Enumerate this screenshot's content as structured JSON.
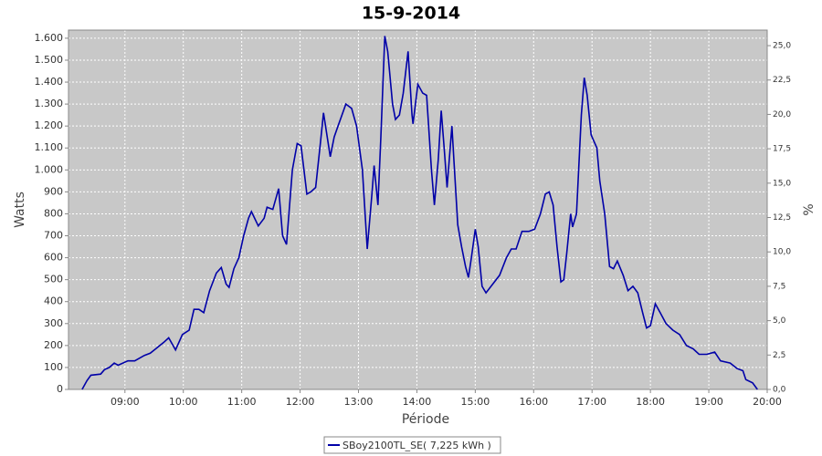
{
  "chart_data": {
    "type": "line",
    "title": "15-9-2014",
    "x_label": "Période",
    "y_label": "Watts",
    "y2_label": "%",
    "xlim": [
      482,
      1200
    ],
    "xticks": [
      {
        "value": 540,
        "label": "09:00"
      },
      {
        "value": 600,
        "label": "10:00"
      },
      {
        "value": 660,
        "label": "11:00"
      },
      {
        "value": 720,
        "label": "12:00"
      },
      {
        "value": 780,
        "label": "13:00"
      },
      {
        "value": 840,
        "label": "14:00"
      },
      {
        "value": 900,
        "label": "15:00"
      },
      {
        "value": 960,
        "label": "16:00"
      },
      {
        "value": 1020,
        "label": "17:00"
      },
      {
        "value": 1080,
        "label": "18:00"
      },
      {
        "value": 1140,
        "label": "19:00"
      },
      {
        "value": 1200,
        "label": "20:00"
      }
    ],
    "ylim": [
      0,
      1637
    ],
    "yticks": [
      0,
      100,
      200,
      300,
      400,
      500,
      600,
      700,
      800,
      900,
      {
        "value": 1000,
        "label": "1.000"
      },
      {
        "value": 1100,
        "label": "1.100"
      },
      {
        "value": 1200,
        "label": "1.200"
      },
      {
        "value": 1300,
        "label": "1.300"
      },
      {
        "value": 1400,
        "label": "1.400"
      },
      {
        "value": 1500,
        "label": "1.500"
      },
      {
        "value": 1600,
        "label": "1.600"
      }
    ],
    "y2lim": [
      0,
      26.13
    ],
    "y2ticks": [
      {
        "value": 0,
        "label": "0,0"
      },
      {
        "value": 2.5,
        "label": "2,5"
      },
      {
        "value": 5,
        "label": "5,0"
      },
      {
        "value": 7.5,
        "label": "7,5"
      },
      {
        "value": 10,
        "label": "10,0"
      },
      {
        "value": 12.5,
        "label": "12,5"
      },
      {
        "value": 15,
        "label": "15,0"
      },
      {
        "value": 17.5,
        "label": "17,5"
      },
      {
        "value": 20,
        "label": "20,0"
      },
      {
        "value": 22.5,
        "label": "22,5"
      },
      {
        "value": 25,
        "label": "25,0"
      }
    ],
    "grid": true,
    "legend": "bottom",
    "x": [
      496,
      501,
      505,
      515,
      519,
      524,
      529,
      533,
      543,
      550,
      560,
      566,
      573,
      580,
      585,
      592,
      599,
      606,
      611,
      616,
      621,
      627,
      634,
      639,
      644,
      647,
      652,
      657,
      662,
      667,
      670,
      677,
      683,
      686,
      692,
      698,
      702,
      706,
      712,
      717,
      721,
      727,
      731,
      736,
      741,
      744,
      751,
      755,
      759,
      767,
      773,
      778,
      784,
      789,
      794,
      796,
      800,
      803,
      807,
      810,
      815,
      818,
      822,
      826,
      831,
      835,
      836,
      841,
      846,
      850,
      855,
      858,
      862,
      865,
      868,
      871,
      876,
      878,
      882,
      886,
      890,
      893,
      896,
      900,
      903,
      907,
      911,
      918,
      925,
      932,
      937,
      942,
      948,
      955,
      961,
      967,
      972,
      976,
      980,
      984,
      988,
      991,
      994,
      998,
      1000,
      1004,
      1009,
      1012,
      1015,
      1019,
      1025,
      1028,
      1033,
      1038,
      1042,
      1046,
      1052,
      1057,
      1062,
      1067,
      1072,
      1076,
      1080,
      1085,
      1090,
      1096,
      1103,
      1110,
      1117,
      1124,
      1130,
      1138,
      1146,
      1152,
      1162,
      1169,
      1175,
      1178,
      1185,
      1190
    ],
    "series": [
      {
        "name": "SBoy2100TL_SE( 7,225 kWh )",
        "color": "#0000a8",
        "values": [
          0,
          40,
          65,
          70,
          90,
          100,
          120,
          110,
          130,
          130,
          155,
          165,
          190,
          215,
          235,
          180,
          250,
          270,
          365,
          365,
          350,
          450,
          530,
          555,
          480,
          465,
          550,
          600,
          700,
          780,
          810,
          745,
          780,
          830,
          820,
          915,
          700,
          660,
          1000,
          1120,
          1110,
          890,
          900,
          920,
          1130,
          1260,
          1060,
          1150,
          1200,
          1300,
          1280,
          1200,
          1000,
          640,
          900,
          1020,
          840,
          1150,
          1610,
          1540,
          1300,
          1230,
          1250,
          1350,
          1540,
          1250,
          1210,
          1390,
          1350,
          1340,
          1000,
          840,
          1050,
          1270,
          1100,
          920,
          1200,
          1050,
          750,
          650,
          560,
          510,
          600,
          730,
          650,
          470,
          440,
          480,
          520,
          600,
          640,
          640,
          720,
          720,
          730,
          800,
          890,
          900,
          840,
          650,
          490,
          500,
          620,
          800,
          740,
          800,
          1250,
          1420,
          1340,
          1160,
          1100,
          950,
          800,
          560,
          550,
          585,
          520,
          450,
          470,
          440,
          350,
          280,
          290,
          390,
          350,
          300,
          270,
          250,
          200,
          185,
          160,
          160,
          170,
          130,
          120,
          95,
          85,
          45,
          30,
          0
        ]
      }
    ]
  }
}
